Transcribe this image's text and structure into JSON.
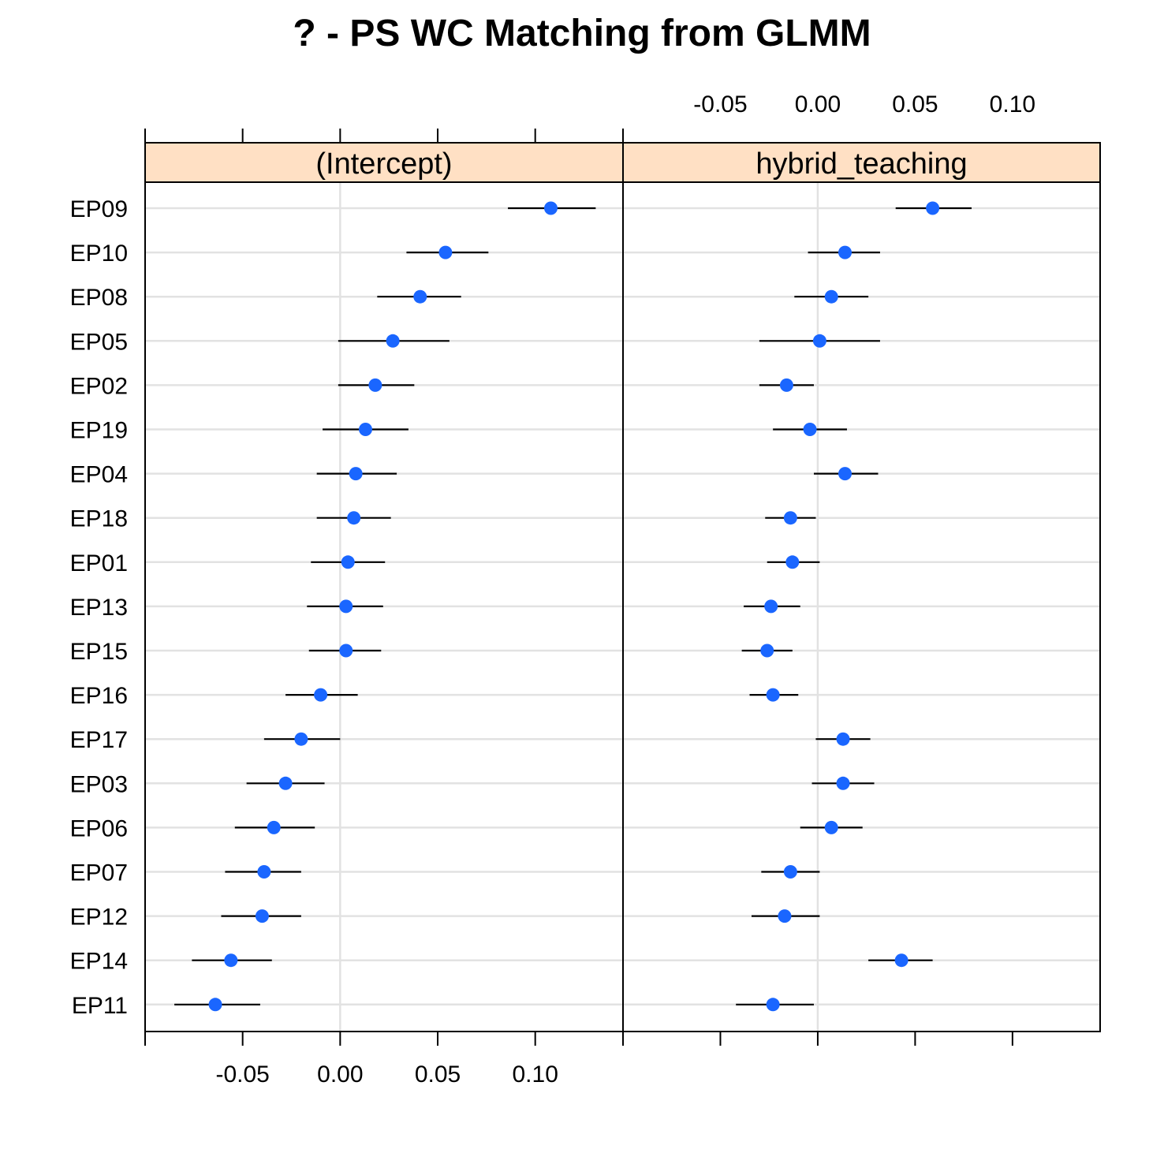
{
  "chart_data": {
    "type": "dotplot",
    "title": "? - PS WC Matching from GLMM",
    "categories": [
      "EP09",
      "EP10",
      "EP08",
      "EP05",
      "EP02",
      "EP19",
      "EP04",
      "EP18",
      "EP01",
      "EP13",
      "EP15",
      "EP16",
      "EP17",
      "EP03",
      "EP06",
      "EP07",
      "EP12",
      "EP14",
      "EP11"
    ],
    "xlim": [
      -0.1,
      0.145
    ],
    "ticks": [
      {
        "value": -0.05,
        "label": "-0.05"
      },
      {
        "value": 0,
        "label": "0.00"
      },
      {
        "value": 0.05,
        "label": "0.05"
      },
      {
        "value": 0.1,
        "label": "0.10"
      }
    ],
    "grid": true,
    "marker_color": "#1a66ff",
    "strip_color": "#ffe0c4",
    "panels": [
      {
        "label": "(Intercept)",
        "estimate": [
          0.108,
          0.054,
          0.041,
          0.027,
          0.018,
          0.013,
          0.008,
          0.007,
          0.004,
          0.003,
          0.003,
          -0.01,
          -0.02,
          -0.028,
          -0.034,
          -0.039,
          -0.04,
          -0.056,
          -0.064
        ],
        "lower": [
          0.086,
          0.034,
          0.019,
          -0.001,
          -0.001,
          -0.009,
          -0.012,
          -0.012,
          -0.015,
          -0.017,
          -0.016,
          -0.028,
          -0.039,
          -0.048,
          -0.054,
          -0.059,
          -0.061,
          -0.076,
          -0.085
        ],
        "upper": [
          0.131,
          0.076,
          0.062,
          0.056,
          0.038,
          0.035,
          0.029,
          0.026,
          0.023,
          0.022,
          0.021,
          0.009,
          0,
          -0.008,
          -0.013,
          -0.02,
          -0.02,
          -0.035,
          -0.041
        ]
      },
      {
        "label": "hybrid_teaching",
        "estimate": [
          0.059,
          0.014,
          0.007,
          0.001,
          -0.016,
          -0.004,
          0.014,
          -0.014,
          -0.013,
          -0.024,
          -0.026,
          -0.023,
          0.013,
          0.013,
          0.007,
          -0.014,
          -0.017,
          0.043,
          -0.023
        ],
        "lower": [
          0.04,
          -0.005,
          -0.012,
          -0.03,
          -0.03,
          -0.023,
          -0.002,
          -0.027,
          -0.026,
          -0.038,
          -0.039,
          -0.035,
          -0.001,
          -0.003,
          -0.009,
          -0.029,
          -0.034,
          0.026,
          -0.042
        ],
        "upper": [
          0.079,
          0.032,
          0.026,
          0.032,
          -0.002,
          0.015,
          0.031,
          -0.001,
          0.001,
          -0.009,
          -0.013,
          -0.01,
          0.027,
          0.029,
          0.023,
          0.001,
          0.001,
          0.059,
          -0.002
        ]
      }
    ]
  }
}
